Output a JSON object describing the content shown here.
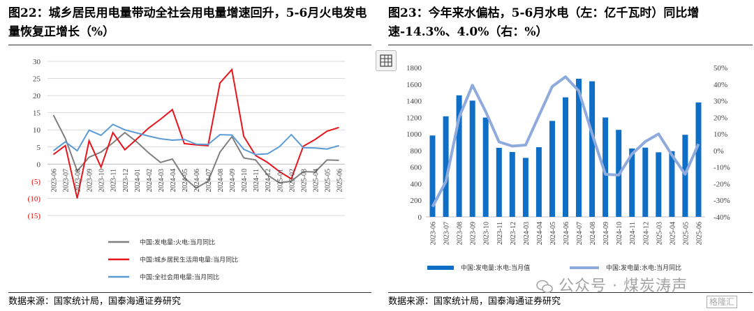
{
  "left": {
    "title": "图22：城乡居民用电量带动全社会用电量增速回升，5-6月火电发电量恢复正增长（%）",
    "source": "数据来源：国家统计局，国泰海通证券研究"
  },
  "right": {
    "title": "图23：今年来水偏枯，5-6月水电（左：亿千瓦时）同比增速-14.3%、4.0%（右：%）",
    "source": "数据来源：国家统计局，国泰海通证券研究"
  },
  "watermark": "公众号 · 煤炭涛声",
  "corner_logo": "格隆汇",
  "icons": {
    "table_icon": "spreadsheet-icon"
  },
  "colors": {
    "thermal": "#7f7f7f",
    "resident": "#e8141b",
    "society": "#5b9bd5",
    "hydro_bar": "#0f6fc6",
    "hydro_line": "#8faadc"
  },
  "chart_data": [
    {
      "type": "line",
      "x": [
        "2023-06",
        "2023-07",
        "2023-08",
        "2023-09",
        "2023-10",
        "2023-11",
        "2023-12",
        "2024-01",
        "2024-02",
        "2024-03",
        "2024-04",
        "2024-05",
        "2024-06",
        "2024-07",
        "2024-08",
        "2024-09",
        "2024-10",
        "2024-11",
        "2024-12",
        "2025-01",
        "2025-02",
        "2025-03",
        "2025-04",
        "2025-05",
        "2025-06"
      ],
      "xlabels": [
        "2023-06",
        "2023-07",
        "2023-08",
        "2023-09",
        "2023-10",
        "2023-11",
        "2023-12",
        "2024-01",
        "2024-02",
        "2024-03",
        "2024-04",
        "2024-05",
        "2024-06",
        "2024-07",
        "2024-08",
        "2024-09",
        "2024-10",
        "2024-11",
        "2024-12",
        "2025-01",
        "2025-02",
        "2025-03",
        "2025-04",
        "2025-05",
        "2025-06"
      ],
      "ylim": [
        -15,
        30
      ],
      "yticks": [
        "30",
        "25",
        "20",
        "15",
        "10",
        "5",
        "0",
        "(5)",
        "(10)",
        "(15)"
      ],
      "series": [
        {
          "name": "中国:发电量:火电:当月同比",
          "color": "#7f7f7f",
          "values": [
            14.3,
            7.5,
            -2.0,
            2.0,
            3.5,
            6.2,
            9.2,
            6.5,
            3.3,
            0.5,
            1.5,
            -4.0,
            -7.0,
            -5.0,
            3.5,
            8.0,
            1.8,
            1.2,
            -3.2,
            -5.5,
            -5.0,
            -2.2,
            -2.3,
            1.2,
            1.1
          ]
        },
        {
          "name": "中国:城乡居民生活用电量:当月同比",
          "color": "#e8141b",
          "values": [
            2.8,
            5.4,
            -10.0,
            6.8,
            -0.9,
            9.2,
            4.2,
            7.3,
            10.5,
            13.1,
            15.9,
            6.0,
            5.6,
            5.4,
            23.7,
            27.6,
            8.1,
            2.5,
            0.5,
            -2.2,
            -4.3,
            5.2,
            7.2,
            9.6,
            10.7
          ]
        },
        {
          "name": "中国:全社会用电量:当月同比",
          "color": "#5b9bd5",
          "values": [
            3.9,
            6.5,
            3.9,
            9.9,
            8.4,
            11.6,
            10.0,
            9.1,
            8.2,
            7.4,
            7.0,
            7.2,
            5.8,
            5.7,
            8.6,
            8.5,
            4.3,
            2.8,
            3.0,
            5.1,
            8.6,
            4.8,
            4.7,
            4.4,
            5.4
          ]
        }
      ]
    },
    {
      "type": "bar+line",
      "x": [
        "2023-06",
        "2023-07",
        "2023-08",
        "2023-09",
        "2023-10",
        "2023-11",
        "2023-12",
        "2024-03",
        "2024-04",
        "2024-05",
        "2024-06",
        "2024-07",
        "2024-08",
        "2024-09",
        "2024-10",
        "2024-11",
        "2024-12",
        "2025-03",
        "2025-04",
        "2025-05",
        "2025-06"
      ],
      "xlabels": [
        "2023-06",
        "2023-07",
        "2023-08",
        "2023-09",
        "2023-10",
        "2023-11",
        "2023-12",
        "2024-03",
        "2024-04",
        "2024-05",
        "2024-06",
        "2024-07",
        "2024-08",
        "2024-09",
        "2024-10",
        "2024-11",
        "2024-12",
        "2025-03",
        "2025-04",
        "2025-05",
        "2025-06"
      ],
      "ylim_left": [
        0,
        1800
      ],
      "yticks_left": [
        "1800",
        "1600",
        "1400",
        "1200",
        "1000",
        "800",
        "600",
        "400",
        "200",
        "0"
      ],
      "ylim_right": [
        -40,
        50
      ],
      "yticks_right": [
        "50%",
        "40%",
        "30%",
        "20%",
        "10%",
        "0%",
        "-10%",
        "-20%",
        "-30%",
        "-40%"
      ],
      "series": [
        {
          "name": "中国:发电量:水电:当月值",
          "type": "bar",
          "axis": "left",
          "color": "#0f6fc6",
          "values": [
            982,
            1213,
            1466,
            1402,
            1198,
            833,
            782,
            712,
            840,
            1157,
            1442,
            1666,
            1635,
            1199,
            1050,
            825,
            835,
            779,
            792,
            990,
            1380
          ]
        },
        {
          "name": "中国:发电量:水电:当月同比",
          "type": "line",
          "axis": "right",
          "color": "#8faadc",
          "values": [
            -33.9,
            -18.8,
            20.0,
            39.4,
            23.5,
            5.2,
            2.7,
            3.3,
            21.0,
            38.6,
            44.5,
            36.0,
            10.1,
            -14.3,
            -14.8,
            -2.1,
            5.4,
            10.0,
            -2.7,
            -14.3,
            4.0
          ]
        }
      ]
    }
  ]
}
